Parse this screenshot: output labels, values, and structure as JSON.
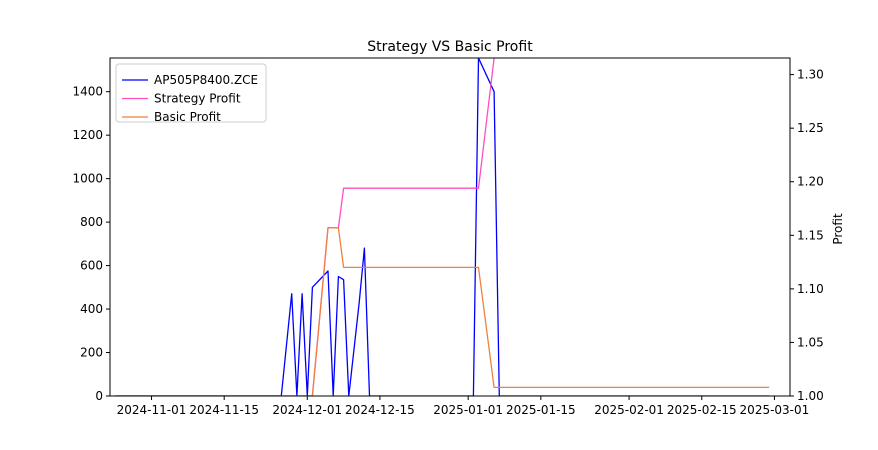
{
  "chart_data": {
    "type": "line",
    "title": "Strategy VS Basic Profit",
    "xlabel": "",
    "ylabel_left": "",
    "ylabel_right": "Profit",
    "x_ticks": [
      "2024-11-01",
      "2024-11-15",
      "2024-12-01",
      "2024-12-15",
      "2025-01-01",
      "2025-01-15",
      "2025-02-01",
      "2025-02-15",
      "2025-03-01"
    ],
    "y_left_ticks": [
      "0",
      "200",
      "400",
      "600",
      "800",
      "1000",
      "1200",
      "1400"
    ],
    "y_right_ticks": [
      "1.00",
      "1.05",
      "1.10",
      "1.15",
      "1.20",
      "1.25",
      "1.30"
    ],
    "xlim": [
      "2024-10-24",
      "2025-03-04"
    ],
    "ylim_left": [
      0,
      1555
    ],
    "ylim_right": [
      1.0,
      1.3155
    ],
    "grid": false,
    "legend_position": "top-left",
    "series": [
      {
        "name": "AP505P8400.ZCE",
        "axis": "left",
        "color": "#0000ff",
        "points": [
          [
            "2024-10-25",
            0
          ],
          [
            "2024-11-25",
            0
          ],
          [
            "2024-11-26",
            0
          ],
          [
            "2024-11-28",
            470
          ],
          [
            "2024-11-29",
            0
          ],
          [
            "2024-11-30",
            470
          ],
          [
            "2024-12-01",
            0
          ],
          [
            "2024-12-02",
            500
          ],
          [
            "2024-12-05",
            575
          ],
          [
            "2024-12-06",
            0
          ],
          [
            "2024-12-07",
            550
          ],
          [
            "2024-12-08",
            535
          ],
          [
            "2024-12-09",
            0
          ],
          [
            "2024-12-11",
            430
          ],
          [
            "2024-12-12",
            680
          ],
          [
            "2024-12-13",
            0
          ],
          [
            "2025-01-01",
            0
          ],
          [
            "2025-01-02",
            0
          ],
          [
            "2025-01-03",
            1555
          ],
          [
            "2025-01-06",
            1400
          ],
          [
            "2025-01-07",
            0
          ],
          [
            "2025-02-28",
            0
          ]
        ]
      },
      {
        "name": "Strategy Profit",
        "axis": "right",
        "color": "#ff4fbf",
        "points": [
          [
            "2024-10-25",
            1.0
          ],
          [
            "2024-12-02",
            1.0
          ],
          [
            "2024-12-05",
            1.157
          ],
          [
            "2024-12-07",
            1.157
          ],
          [
            "2024-12-08",
            1.194
          ],
          [
            "2025-01-03",
            1.194
          ],
          [
            "2025-01-06",
            1.3155
          ]
        ]
      },
      {
        "name": "Basic Profit",
        "axis": "right",
        "color": "#f08040",
        "points": [
          [
            "2024-10-25",
            1.0
          ],
          [
            "2024-12-02",
            1.0
          ],
          [
            "2024-12-05",
            1.157
          ],
          [
            "2024-12-07",
            1.157
          ],
          [
            "2024-12-08",
            1.12
          ],
          [
            "2025-01-03",
            1.12
          ],
          [
            "2025-01-06",
            1.008
          ],
          [
            "2025-02-28",
            1.008
          ]
        ]
      }
    ]
  }
}
